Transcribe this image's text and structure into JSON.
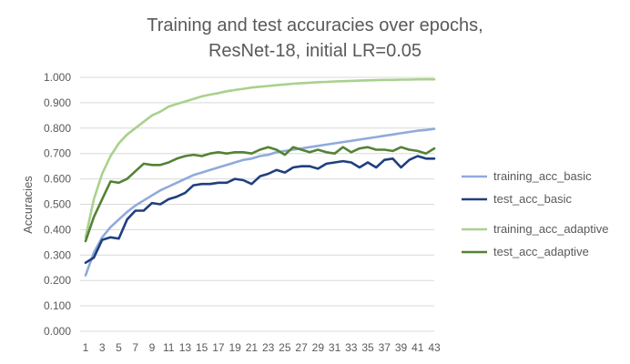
{
  "chart_data": {
    "type": "line",
    "title": [
      "Training and test accuracies over epochs,",
      "ResNet-18, initial LR=0.05"
    ],
    "xlabel": "",
    "ylabel": "Accuracies",
    "ylim": [
      0,
      1
    ],
    "y_ticks": [
      "0.000",
      "0.100",
      "0.200",
      "0.300",
      "0.400",
      "0.500",
      "0.600",
      "0.700",
      "0.800",
      "0.900",
      "1.000"
    ],
    "x_ticks": [
      "1",
      "3",
      "5",
      "7",
      "9",
      "11",
      "13",
      "15",
      "17",
      "19",
      "21",
      "23",
      "25",
      "27",
      "29",
      "31",
      "33",
      "35",
      "37",
      "39",
      "41",
      "43"
    ],
    "grid": true,
    "legend_position": "right",
    "x": [
      1,
      2,
      3,
      4,
      5,
      6,
      7,
      8,
      9,
      10,
      11,
      12,
      13,
      14,
      15,
      16,
      17,
      18,
      19,
      20,
      21,
      22,
      23,
      24,
      25,
      26,
      27,
      28,
      29,
      30,
      31,
      32,
      33,
      34,
      35,
      36,
      37,
      38,
      39,
      40,
      41,
      42,
      43
    ],
    "series": [
      {
        "name": "training_acc_basic",
        "color": "#8faadc",
        "values": [
          0.22,
          0.31,
          0.37,
          0.41,
          0.44,
          0.47,
          0.495,
          0.515,
          0.535,
          0.555,
          0.57,
          0.585,
          0.6,
          0.615,
          0.625,
          0.635,
          0.645,
          0.655,
          0.665,
          0.675,
          0.68,
          0.69,
          0.695,
          0.705,
          0.71,
          0.715,
          0.72,
          0.725,
          0.73,
          0.735,
          0.74,
          0.745,
          0.75,
          0.755,
          0.76,
          0.765,
          0.77,
          0.775,
          0.78,
          0.785,
          0.79,
          0.793,
          0.797
        ]
      },
      {
        "name": "test_acc_basic",
        "color": "#1f3f7f",
        "values": [
          0.27,
          0.29,
          0.36,
          0.37,
          0.365,
          0.44,
          0.475,
          0.475,
          0.505,
          0.5,
          0.52,
          0.53,
          0.545,
          0.575,
          0.58,
          0.58,
          0.585,
          0.585,
          0.6,
          0.595,
          0.58,
          0.61,
          0.62,
          0.635,
          0.625,
          0.645,
          0.65,
          0.65,
          0.64,
          0.66,
          0.665,
          0.67,
          0.665,
          0.645,
          0.665,
          0.645,
          0.675,
          0.68,
          0.645,
          0.675,
          0.69,
          0.68,
          0.68
        ]
      },
      {
        "name": "training_acc_adaptive",
        "color": "#a9d18e",
        "values": [
          0.37,
          0.52,
          0.62,
          0.69,
          0.74,
          0.775,
          0.8,
          0.825,
          0.85,
          0.865,
          0.885,
          0.895,
          0.905,
          0.915,
          0.925,
          0.932,
          0.938,
          0.945,
          0.95,
          0.955,
          0.96,
          0.963,
          0.966,
          0.969,
          0.972,
          0.975,
          0.977,
          0.979,
          0.981,
          0.982,
          0.984,
          0.985,
          0.986,
          0.987,
          0.988,
          0.989,
          0.99,
          0.99,
          0.991,
          0.991,
          0.992,
          0.992,
          0.992
        ]
      },
      {
        "name": "test_acc_adaptive",
        "color": "#548235",
        "values": [
          0.355,
          0.45,
          0.52,
          0.59,
          0.585,
          0.6,
          0.63,
          0.66,
          0.655,
          0.655,
          0.665,
          0.68,
          0.69,
          0.695,
          0.69,
          0.7,
          0.705,
          0.7,
          0.705,
          0.705,
          0.7,
          0.715,
          0.725,
          0.715,
          0.695,
          0.725,
          0.715,
          0.705,
          0.715,
          0.705,
          0.7,
          0.725,
          0.705,
          0.72,
          0.725,
          0.715,
          0.715,
          0.71,
          0.725,
          0.715,
          0.71,
          0.7,
          0.72
        ]
      }
    ]
  }
}
